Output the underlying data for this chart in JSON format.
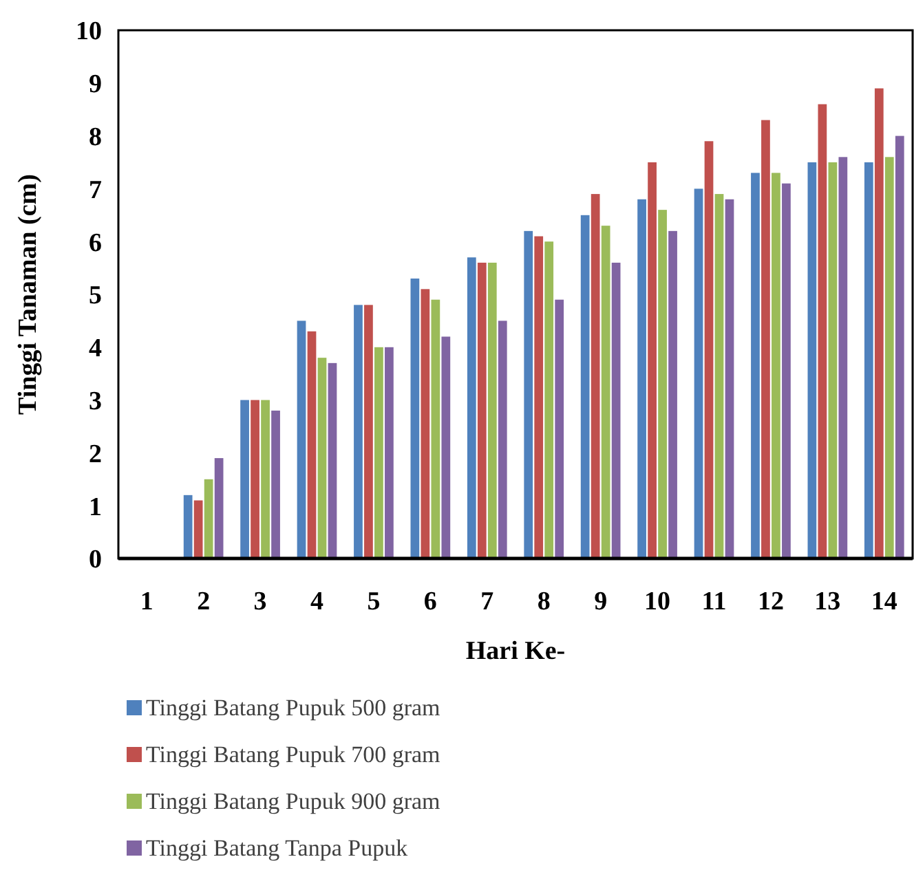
{
  "chart_data": {
    "type": "bar",
    "xlabel": "Hari Ke-",
    "ylabel": "Tinggi Tanaman (cm)",
    "categories": [
      "1",
      "2",
      "3",
      "4",
      "5",
      "6",
      "7",
      "8",
      "9",
      "10",
      "11",
      "12",
      "13",
      "14"
    ],
    "series": [
      {
        "name": "Tinggi Batang Pupuk 500 gram",
        "color": "#4f81bd",
        "values": [
          0,
          1.2,
          3.0,
          4.5,
          4.8,
          5.3,
          5.7,
          6.2,
          6.5,
          6.8,
          7.0,
          7.3,
          7.5,
          7.5
        ]
      },
      {
        "name": "Tinggi Batang Pupuk 700 gram",
        "color": "#c0504d",
        "values": [
          0,
          1.1,
          3.0,
          4.3,
          4.8,
          5.1,
          5.6,
          6.1,
          6.9,
          7.5,
          7.9,
          8.3,
          8.6,
          8.9
        ]
      },
      {
        "name": "Tinggi Batang Pupuk 900 gram",
        "color": "#9bbb59",
        "values": [
          0,
          1.5,
          3.0,
          3.8,
          4.0,
          4.9,
          5.6,
          6.0,
          6.3,
          6.6,
          6.9,
          7.3,
          7.5,
          7.6
        ]
      },
      {
        "name": "Tinggi Batang Tanpa Pupuk",
        "color": "#8064a2",
        "values": [
          0,
          1.9,
          2.8,
          3.7,
          4.0,
          4.2,
          4.5,
          4.9,
          5.6,
          6.2,
          6.8,
          7.1,
          7.6,
          8.0
        ]
      }
    ],
    "ylim": [
      0,
      10
    ],
    "yticks": [
      0,
      1,
      2,
      3,
      4,
      5,
      6,
      7,
      8,
      9,
      10
    ],
    "grid": false,
    "legend": "bottom"
  }
}
